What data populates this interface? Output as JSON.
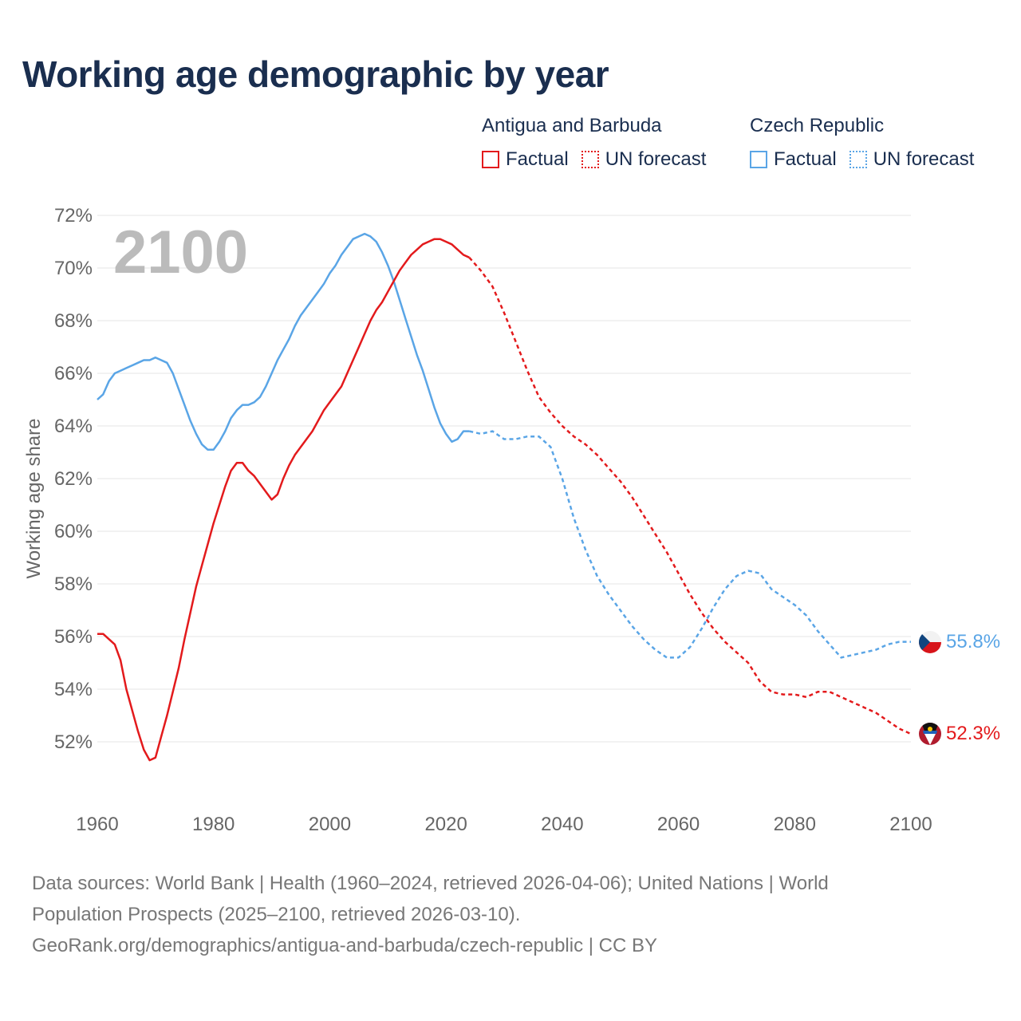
{
  "title": "Working age demographic by year",
  "legend": {
    "groups": [
      {
        "country": "Antigua and Barbuda",
        "color": "#e31a1c",
        "factual_label": "Factual",
        "forecast_label": "UN forecast"
      },
      {
        "country": "Czech Republic",
        "color": "#5aa5e6",
        "factual_label": "Factual",
        "forecast_label": "UN forecast"
      }
    ]
  },
  "year_label": "2100",
  "footer": {
    "line1": "Data sources: World Bank | Health (1960–2024, retrieved 2026-04-06); United Nations | World",
    "line2": "Population Prospects (2025–2100, retrieved 2026-03-10).",
    "line3": "GeoRank.org/demographics/antigua-and-barbuda/czech-republic | CC BY"
  },
  "chart_data": {
    "type": "line",
    "title": "Working age demographic by year",
    "xlabel": "",
    "ylabel": "Working age share",
    "xlim": [
      1960,
      2100
    ],
    "ylim": [
      50.5,
      72
    ],
    "xticks": [
      1960,
      1980,
      2000,
      2020,
      2040,
      2060,
      2080,
      2100
    ],
    "xtick_labels": [
      "1960",
      "1980",
      "2000",
      "2020",
      "2040",
      "2060",
      "2080",
      "2100"
    ],
    "yticks": [
      52,
      54,
      56,
      58,
      60,
      62,
      64,
      66,
      68,
      70,
      72
    ],
    "ytick_labels": [
      "52%",
      "54%",
      "56%",
      "58%",
      "60%",
      "62%",
      "64%",
      "66%",
      "68%",
      "70%",
      "72%"
    ],
    "grid": true,
    "series": [
      {
        "name": "Antigua and Barbuda",
        "color": "#e31a1c",
        "end_label": "52.3%",
        "factual": {
          "years": [
            1960,
            1961,
            1962,
            1963,
            1964,
            1965,
            1966,
            1967,
            1968,
            1969,
            1970,
            1971,
            1972,
            1973,
            1974,
            1975,
            1976,
            1977,
            1978,
            1979,
            1980,
            1981,
            1982,
            1983,
            1984,
            1985,
            1986,
            1987,
            1988,
            1989,
            1990,
            1991,
            1992,
            1993,
            1994,
            1995,
            1996,
            1997,
            1998,
            1999,
            2000,
            2001,
            2002,
            2003,
            2004,
            2005,
            2006,
            2007,
            2008,
            2009,
            2010,
            2011,
            2012,
            2013,
            2014,
            2015,
            2016,
            2017,
            2018,
            2019,
            2020,
            2021,
            2022,
            2023,
            2024
          ],
          "values": [
            56.1,
            56.1,
            55.9,
            55.7,
            55.1,
            54.0,
            53.2,
            52.4,
            51.7,
            51.3,
            51.4,
            52.2,
            53.0,
            53.9,
            54.8,
            55.9,
            56.9,
            57.9,
            58.7,
            59.5,
            60.3,
            61.0,
            61.7,
            62.3,
            62.6,
            62.6,
            62.3,
            62.1,
            61.8,
            61.5,
            61.2,
            61.4,
            62.0,
            62.5,
            62.9,
            63.2,
            63.5,
            63.8,
            64.2,
            64.6,
            64.9,
            65.2,
            65.5,
            66.0,
            66.5,
            67.0,
            67.5,
            68.0,
            68.4,
            68.7,
            69.1,
            69.5,
            69.9,
            70.2,
            70.5,
            70.7,
            70.9,
            71.0,
            71.1,
            71.1,
            71.0,
            70.9,
            70.7,
            70.5,
            70.4
          ]
        },
        "forecast": {
          "years": [
            2024,
            2026,
            2028,
            2030,
            2032,
            2034,
            2036,
            2038,
            2040,
            2042,
            2044,
            2046,
            2048,
            2050,
            2052,
            2054,
            2056,
            2058,
            2060,
            2062,
            2064,
            2066,
            2068,
            2070,
            2072,
            2074,
            2076,
            2078,
            2080,
            2082,
            2084,
            2086,
            2088,
            2090,
            2092,
            2094,
            2096,
            2098,
            2100
          ],
          "values": [
            70.4,
            69.9,
            69.3,
            68.3,
            67.2,
            66.1,
            65.1,
            64.5,
            64.0,
            63.6,
            63.3,
            62.9,
            62.4,
            61.9,
            61.3,
            60.6,
            59.9,
            59.2,
            58.4,
            57.6,
            56.9,
            56.3,
            55.8,
            55.4,
            55.0,
            54.3,
            53.9,
            53.8,
            53.8,
            53.7,
            53.9,
            53.9,
            53.7,
            53.5,
            53.3,
            53.1,
            52.8,
            52.5,
            52.3
          ]
        }
      },
      {
        "name": "Czech Republic",
        "color": "#5aa5e6",
        "end_label": "55.8%",
        "factual": {
          "years": [
            1960,
            1961,
            1962,
            1963,
            1964,
            1965,
            1966,
            1967,
            1968,
            1969,
            1970,
            1971,
            1972,
            1973,
            1974,
            1975,
            1976,
            1977,
            1978,
            1979,
            1980,
            1981,
            1982,
            1983,
            1984,
            1985,
            1986,
            1987,
            1988,
            1989,
            1990,
            1991,
            1992,
            1993,
            1994,
            1995,
            1996,
            1997,
            1998,
            1999,
            2000,
            2001,
            2002,
            2003,
            2004,
            2005,
            2006,
            2007,
            2008,
            2009,
            2010,
            2011,
            2012,
            2013,
            2014,
            2015,
            2016,
            2017,
            2018,
            2019,
            2020,
            2021,
            2022,
            2023,
            2024
          ],
          "values": [
            65.0,
            65.2,
            65.7,
            66.0,
            66.1,
            66.2,
            66.3,
            66.4,
            66.5,
            66.5,
            66.6,
            66.5,
            66.4,
            66.0,
            65.4,
            64.8,
            64.2,
            63.7,
            63.3,
            63.1,
            63.1,
            63.4,
            63.8,
            64.3,
            64.6,
            64.8,
            64.8,
            64.9,
            65.1,
            65.5,
            66.0,
            66.5,
            66.9,
            67.3,
            67.8,
            68.2,
            68.5,
            68.8,
            69.1,
            69.4,
            69.8,
            70.1,
            70.5,
            70.8,
            71.1,
            71.2,
            71.3,
            71.2,
            71.0,
            70.6,
            70.1,
            69.5,
            68.8,
            68.1,
            67.4,
            66.7,
            66.1,
            65.4,
            64.7,
            64.1,
            63.7,
            63.4,
            63.5,
            63.8,
            63.8
          ]
        },
        "forecast": {
          "years": [
            2024,
            2026,
            2028,
            2030,
            2032,
            2034,
            2036,
            2038,
            2040,
            2042,
            2044,
            2046,
            2048,
            2050,
            2052,
            2054,
            2056,
            2058,
            2060,
            2062,
            2064,
            2066,
            2068,
            2070,
            2072,
            2074,
            2076,
            2078,
            2080,
            2082,
            2084,
            2086,
            2088,
            2090,
            2092,
            2094,
            2096,
            2098,
            2100
          ],
          "values": [
            63.8,
            63.7,
            63.8,
            63.5,
            63.5,
            63.6,
            63.6,
            63.2,
            62.0,
            60.5,
            59.3,
            58.3,
            57.6,
            57.0,
            56.4,
            55.9,
            55.5,
            55.2,
            55.2,
            55.6,
            56.3,
            57.1,
            57.8,
            58.3,
            58.5,
            58.4,
            57.8,
            57.5,
            57.2,
            56.8,
            56.2,
            55.7,
            55.2,
            55.3,
            55.4,
            55.5,
            55.7,
            55.8,
            55.8
          ]
        }
      }
    ]
  }
}
